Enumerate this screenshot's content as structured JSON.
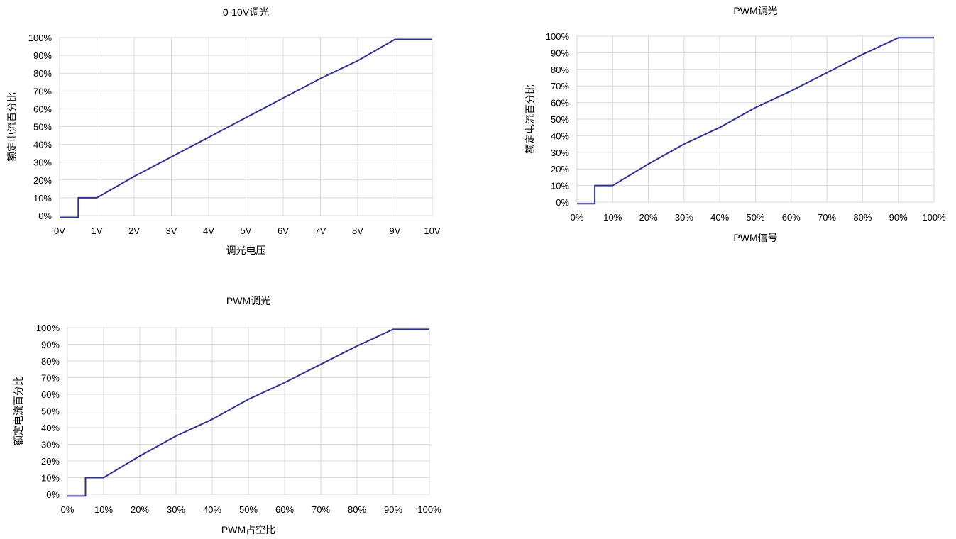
{
  "chart_data": [
    {
      "type": "line",
      "title": "0-10V调光",
      "xlabel": "调光电压",
      "ylabel": "额定电流百分比",
      "x_tick_labels": [
        "0V",
        "1V",
        "2V",
        "3V",
        "4V",
        "5V",
        "6V",
        "7V",
        "8V",
        "9V",
        "10V"
      ],
      "y_tick_labels": [
        "0%",
        "10%",
        "20%",
        "30%",
        "40%",
        "50%",
        "60%",
        "70%",
        "80%",
        "90%",
        "100%"
      ],
      "xlim": [
        0,
        10
      ],
      "ylim": [
        0,
        100
      ],
      "x_unit": "V",
      "y_unit": "%",
      "grid": true,
      "color": "#2e3192",
      "series": [
        {
          "x": [
            0,
            0.5,
            0.5,
            1,
            2,
            3,
            4,
            5,
            6,
            7,
            8,
            9,
            10
          ],
          "y": [
            -1,
            -1,
            10,
            10,
            22,
            33,
            44,
            55,
            66,
            77,
            87,
            99,
            99
          ]
        }
      ]
    },
    {
      "type": "line",
      "title": "PWM调光",
      "xlabel": "PWM信号",
      "ylabel": "额定电流百分比",
      "x_tick_labels": [
        "0%",
        "10%",
        "20%",
        "30%",
        "40%",
        "50%",
        "60%",
        "70%",
        "80%",
        "90%",
        "100%"
      ],
      "y_tick_labels": [
        "0%",
        "10%",
        "20%",
        "30%",
        "40%",
        "50%",
        "60%",
        "70%",
        "80%",
        "90%",
        "100%"
      ],
      "xlim": [
        0,
        100
      ],
      "ylim": [
        0,
        100
      ],
      "x_unit": "%",
      "y_unit": "%",
      "grid": true,
      "color": "#2e3192",
      "series": [
        {
          "x": [
            0,
            5,
            5,
            10,
            20,
            30,
            40,
            50,
            60,
            70,
            80,
            90,
            100
          ],
          "y": [
            -1,
            -1,
            10,
            10,
            23,
            35,
            45,
            57,
            67,
            78,
            89,
            99,
            99
          ]
        }
      ]
    },
    {
      "type": "line",
      "title": "PWM调光",
      "xlabel": "PWM占空比",
      "ylabel": "额定电流百分比",
      "x_tick_labels": [
        "0%",
        "10%",
        "20%",
        "30%",
        "40%",
        "50%",
        "60%",
        "70%",
        "80%",
        "90%",
        "100%"
      ],
      "y_tick_labels": [
        "0%",
        "10%",
        "20%",
        "30%",
        "40%",
        "50%",
        "60%",
        "70%",
        "80%",
        "90%",
        "100%"
      ],
      "xlim": [
        0,
        100
      ],
      "ylim": [
        0,
        100
      ],
      "x_unit": "%",
      "y_unit": "%",
      "grid": true,
      "color": "#2e3192",
      "series": [
        {
          "x": [
            0,
            5,
            5,
            10,
            20,
            30,
            40,
            50,
            60,
            70,
            80,
            90,
            100
          ],
          "y": [
            -1,
            -1,
            10,
            10,
            23,
            35,
            45,
            57,
            67,
            78,
            89,
            99,
            99
          ]
        }
      ]
    }
  ]
}
